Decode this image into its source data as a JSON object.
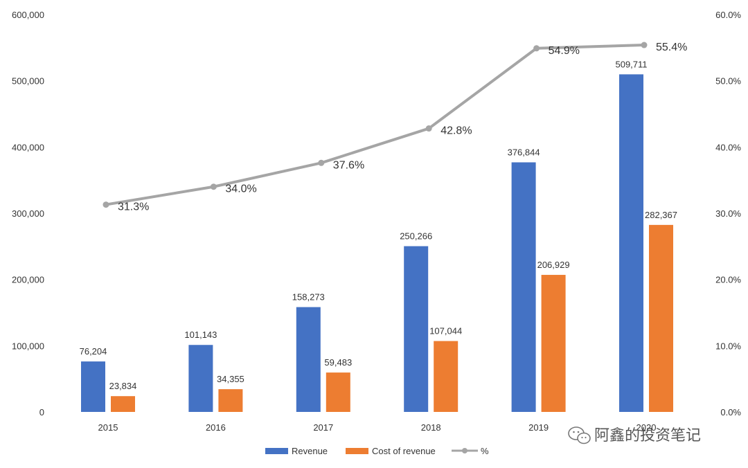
{
  "chart_data": {
    "type": "bar",
    "categories": [
      "2015",
      "2016",
      "2017",
      "2018",
      "2019",
      "2020"
    ],
    "series": [
      {
        "name": "Revenue",
        "type": "bar",
        "axis": "left",
        "color": "#4472C4",
        "values": [
          76204,
          101143,
          158273,
          250266,
          376844,
          509711
        ],
        "labels": [
          "76,204",
          "101,143",
          "158,273",
          "250,266",
          "376,844",
          "509,711"
        ]
      },
      {
        "name": "Cost of revenue",
        "type": "bar",
        "axis": "left",
        "color": "#ED7D31",
        "values": [
          23834,
          34355,
          59483,
          107044,
          206929,
          282367
        ],
        "labels": [
          "23,834",
          "34,355",
          "59,483",
          "107,044",
          "206,929",
          "282,367"
        ]
      },
      {
        "name": "%",
        "type": "line",
        "axis": "right",
        "color": "#A5A5A5",
        "values": [
          31.3,
          34.0,
          37.6,
          42.8,
          54.9,
          55.4
        ],
        "labels": [
          "31.3%",
          "34.0%",
          "37.6%",
          "42.8%",
          "54.9%",
          "55.4%"
        ]
      }
    ],
    "y_left": {
      "min": 0,
      "max": 600000,
      "ticks": [
        "0",
        "100,000",
        "200,000",
        "300,000",
        "400,000",
        "500,000",
        "600,000"
      ]
    },
    "y_right": {
      "min": 0,
      "max": 60,
      "ticks": [
        "0.0%",
        "10.0%",
        "20.0%",
        "30.0%",
        "40.0%",
        "50.0%",
        "60.0%"
      ]
    },
    "legend_position": "bottom",
    "grid": false
  },
  "watermark": {
    "text": "阿鑫的投资笔记",
    "icon": "wechat-icon"
  }
}
